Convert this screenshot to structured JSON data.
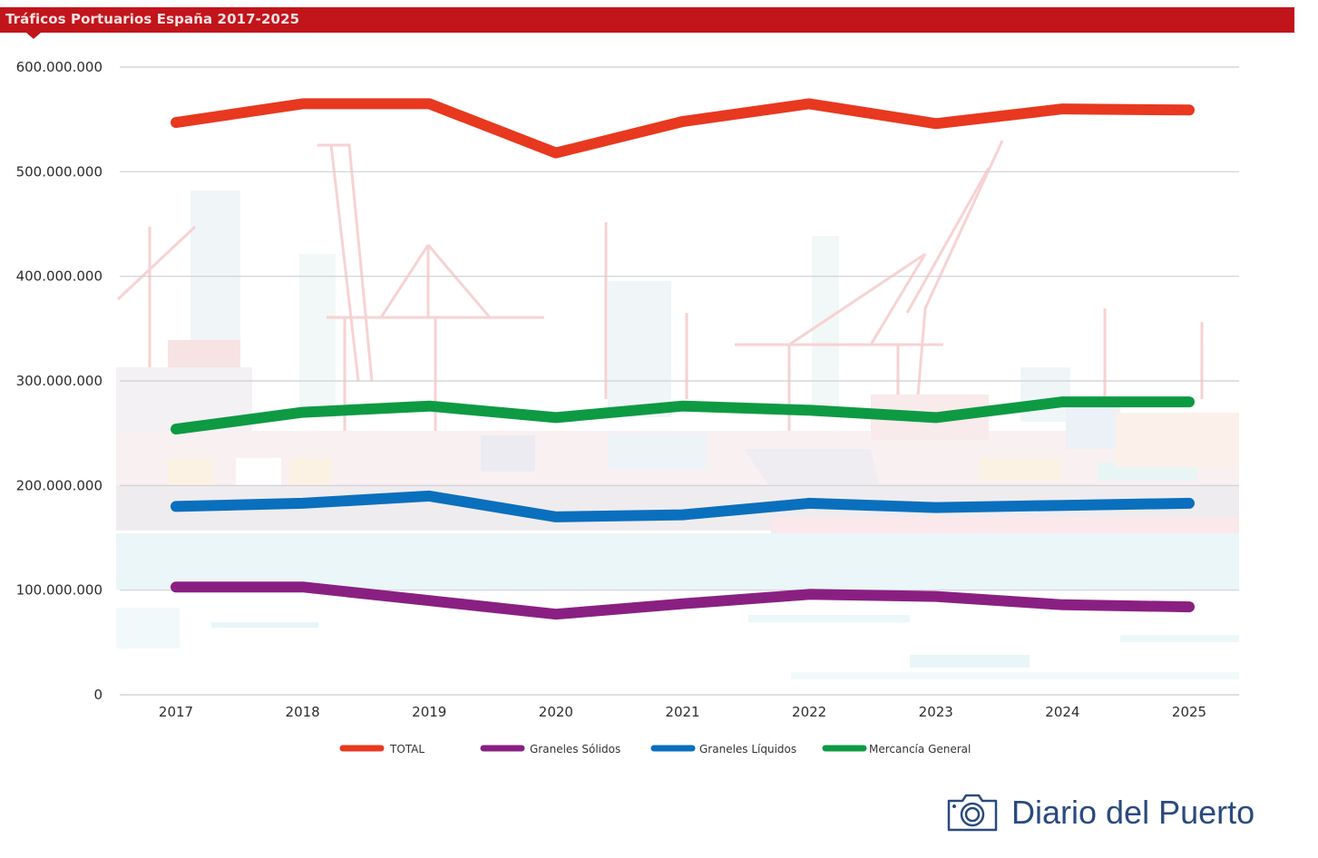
{
  "header": {
    "title": "Tráficos Portuarios España 2017-2025"
  },
  "branding": {
    "text": "Diario del Puerto",
    "icon": "camera-icon",
    "color": "#2a4a7f"
  },
  "colors": {
    "title_bar": "#c2141b"
  },
  "chart_data": {
    "type": "line",
    "title": "Tráficos Portuarios España 2017-2025",
    "xlabel": "",
    "ylabel": "",
    "categories": [
      "2017",
      "2018",
      "2019",
      "2020",
      "2021",
      "2022",
      "2023",
      "2024",
      "2025"
    ],
    "ylim": [
      0,
      600000000
    ],
    "yticks": [
      0,
      100000000,
      200000000,
      300000000,
      400000000,
      500000000,
      600000000
    ],
    "ytick_labels": [
      "0",
      "100.000.000",
      "200.000.000",
      "300.000.000",
      "400.000.000",
      "500.000.000",
      "600.000.000"
    ],
    "grid": true,
    "legend_position": "bottom",
    "series": [
      {
        "name": "TOTAL",
        "color": "#e8381f",
        "values": [
          547000000,
          565000000,
          565000000,
          518000000,
          548000000,
          565000000,
          546000000,
          560000000,
          559000000
        ]
      },
      {
        "name": "Graneles Sólidos",
        "color": "#8a1f82",
        "values": [
          103000000,
          103000000,
          90000000,
          77000000,
          87000000,
          96000000,
          94000000,
          86000000,
          84000000
        ]
      },
      {
        "name": "Graneles Líquidos",
        "color": "#0a6fbd",
        "values": [
          180000000,
          183000000,
          190000000,
          170000000,
          172000000,
          183000000,
          179000000,
          181000000,
          183000000
        ]
      },
      {
        "name": "Mercancía General",
        "color": "#0d9a43",
        "values": [
          254000000,
          270000000,
          276000000,
          265000000,
          276000000,
          272000000,
          265000000,
          280000000,
          280000000
        ]
      }
    ]
  }
}
